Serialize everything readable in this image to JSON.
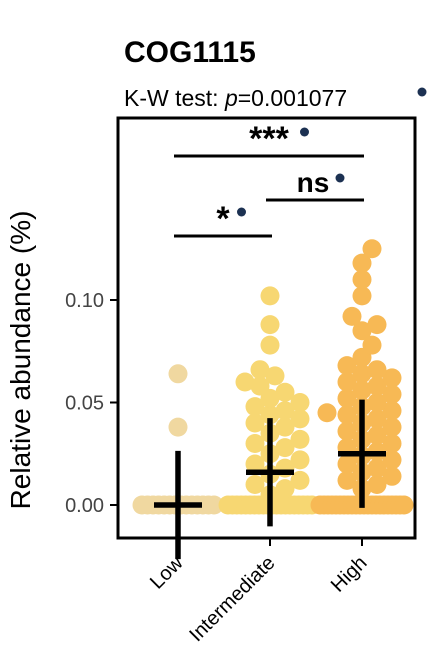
{
  "chart_data": {
    "type": "scatter",
    "title": "COG1115",
    "subtitle": {
      "prefix": "K-W test: ",
      "p_symbol": "p",
      "value": "=0.001077",
      "dot_color": "#1c3152"
    },
    "ylabel": "Relative abundance (%)",
    "xlabel": "",
    "ylim": [
      -0.018,
      0.191
    ],
    "yticks": [
      0.0,
      0.05,
      0.1
    ],
    "ytick_labels": [
      "0.00",
      "0.05",
      "0.10"
    ],
    "grid": false,
    "legend": "none",
    "categories": [
      "Low",
      "Intermediate",
      "High"
    ],
    "group_colors": [
      "#f0d8a0",
      "#f7d772",
      "#f7b955"
    ],
    "group_means": [
      0.0,
      0.016,
      0.025
    ],
    "group_errors": [
      0.012,
      0.012,
      0.012
    ],
    "series": [
      {
        "group": "Low",
        "zero_count": 14,
        "points": [
          0.064,
          0.038
        ]
      },
      {
        "group": "Intermediate",
        "zero_count": 20,
        "points": [
          0.102,
          0.088,
          0.078,
          0.066,
          0.063,
          0.06,
          0.058,
          0.055,
          0.052,
          0.05,
          0.048,
          0.046,
          0.044,
          0.042,
          0.04,
          0.038,
          0.035,
          0.032,
          0.03,
          0.028,
          0.025,
          0.022,
          0.02,
          0.018,
          0.015,
          0.012,
          0.01,
          0.008,
          0.005
        ]
      },
      {
        "group": "High",
        "zero_count": 22,
        "points": [
          0.125,
          0.118,
          0.11,
          0.102,
          0.092,
          0.088,
          0.085,
          0.078,
          0.072,
          0.068,
          0.066,
          0.064,
          0.062,
          0.06,
          0.058,
          0.056,
          0.054,
          0.052,
          0.05,
          0.048,
          0.046,
          0.045,
          0.044,
          0.042,
          0.04,
          0.038,
          0.036,
          0.034,
          0.032,
          0.03,
          0.028,
          0.026,
          0.024,
          0.022,
          0.02,
          0.018,
          0.016,
          0.014,
          0.012,
          0.01,
          0.008
        ]
      }
    ],
    "comparisons": [
      {
        "from": "Low",
        "to": "Intermediate",
        "label": "*",
        "dot_color": "#1c3152"
      },
      {
        "from": "Intermediate",
        "to": "High",
        "label": "ns",
        "dot_color": "#1c3152"
      },
      {
        "from": "Low",
        "to": "High",
        "label": "***",
        "dot_color": "#1c3152"
      }
    ]
  }
}
